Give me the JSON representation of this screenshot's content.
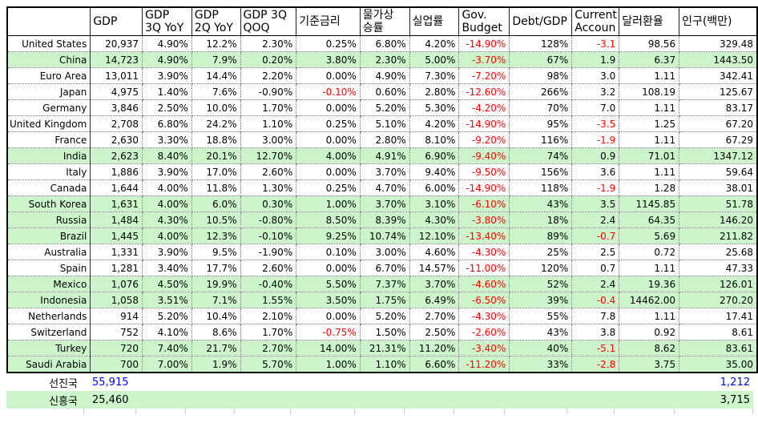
{
  "app": {
    "description": "Spreadsheet of world economic indicators by country"
  },
  "colors": {
    "highlight_green": "#ccf5cc",
    "negative_red": "#ff0000",
    "summary_blue": "#0000ff"
  },
  "table": {
    "columns": [
      {
        "key": "country",
        "label": ""
      },
      {
        "key": "gdp",
        "label": "GDP"
      },
      {
        "key": "gdp_3q_yoy",
        "label": "GDP\n3Q YoY"
      },
      {
        "key": "gdp_2q_yoy",
        "label": "GDP\n2Q YoY"
      },
      {
        "key": "gdp_3q_qoq",
        "label": "GDP 3Q\nQOQ"
      },
      {
        "key": "base_rate",
        "label": "기준금리",
        "neg_red": true
      },
      {
        "key": "inflation",
        "label": "물가상\n승률"
      },
      {
        "key": "unemployment",
        "label": "실업률"
      },
      {
        "key": "gov_budget",
        "label": "Gov.\nBudget",
        "neg_red": true
      },
      {
        "key": "debt_gdp",
        "label": "Debt/GDP"
      },
      {
        "key": "current_account",
        "label": "Current\nAccoun",
        "neg_red": true
      },
      {
        "key": "usd_rate",
        "label": "달러환율"
      },
      {
        "key": "population",
        "label": "인구(백만)"
      }
    ],
    "rows": [
      {
        "label": "United States",
        "green": false,
        "values": [
          "20,937",
          "4.90%",
          "12.2%",
          "2.30%",
          "0.25%",
          "6.80%",
          "4.20%",
          "-14.90%",
          "128%",
          "-3.1",
          "98.56",
          "329.48"
        ]
      },
      {
        "label": "China",
        "green": true,
        "values": [
          "14,723",
          "4.90%",
          "7.9%",
          "0.20%",
          "3.80%",
          "2.30%",
          "5.00%",
          "-3.70%",
          "67%",
          "1.9",
          "6.37",
          "1443.50"
        ]
      },
      {
        "label": "Euro Area",
        "green": false,
        "values": [
          "13,011",
          "3.90%",
          "14.4%",
          "2.20%",
          "0.00%",
          "4.90%",
          "7.30%",
          "-7.20%",
          "98%",
          "3.0",
          "1.11",
          "342.41"
        ]
      },
      {
        "label": "Japan",
        "green": false,
        "values": [
          "4,975",
          "1.40%",
          "7.6%",
          "-0.90%",
          "-0.10%",
          "0.60%",
          "2.80%",
          "-12.60%",
          "266%",
          "3.2",
          "108.19",
          "125.67"
        ]
      },
      {
        "label": "Germany",
        "green": false,
        "values": [
          "3,846",
          "2.50%",
          "10.0%",
          "1.70%",
          "0.00%",
          "5.20%",
          "5.30%",
          "-4.20%",
          "70%",
          "7.0",
          "1.11",
          "83.17"
        ]
      },
      {
        "label": "United Kingdom",
        "green": false,
        "values": [
          "2,708",
          "6.80%",
          "24.2%",
          "1.10%",
          "0.25%",
          "5.10%",
          "4.20%",
          "-14.90%",
          "95%",
          "-3.5",
          "1.25",
          "67.20"
        ]
      },
      {
        "label": "France",
        "green": false,
        "values": [
          "2,630",
          "3.30%",
          "18.8%",
          "3.00%",
          "0.00%",
          "2.80%",
          "8.10%",
          "-9.20%",
          "116%",
          "-1.9",
          "1.11",
          "67.29"
        ]
      },
      {
        "label": "India",
        "green": true,
        "values": [
          "2,623",
          "8.40%",
          "20.1%",
          "12.70%",
          "4.00%",
          "4.91%",
          "6.90%",
          "-9.40%",
          "74%",
          "0.9",
          "71.01",
          "1347.12"
        ]
      },
      {
        "label": "Italy",
        "green": false,
        "values": [
          "1,886",
          "3.90%",
          "17.0%",
          "2.60%",
          "0.00%",
          "3.70%",
          "9.40%",
          "-9.50%",
          "156%",
          "3.6",
          "1.11",
          "59.64"
        ]
      },
      {
        "label": "Canada",
        "green": false,
        "values": [
          "1,644",
          "4.00%",
          "11.8%",
          "1.30%",
          "0.25%",
          "4.70%",
          "6.00%",
          "-14.90%",
          "118%",
          "-1.9",
          "1.28",
          "38.01"
        ]
      },
      {
        "label": "South Korea",
        "green": true,
        "values": [
          "1,631",
          "4.00%",
          "6.0%",
          "0.30%",
          "1.00%",
          "3.70%",
          "3.10%",
          "-6.10%",
          "43%",
          "3.5",
          "1145.85",
          "51.78"
        ]
      },
      {
        "label": "Russia",
        "green": true,
        "values": [
          "1,484",
          "4.30%",
          "10.5%",
          "-0.80%",
          "8.50%",
          "8.39%",
          "4.30%",
          "-3.80%",
          "18%",
          "2.4",
          "64.35",
          "146.20"
        ]
      },
      {
        "label": "Brazil",
        "green": true,
        "values": [
          "1,445",
          "4.00%",
          "12.3%",
          "-0.10%",
          "9.25%",
          "10.74%",
          "12.10%",
          "-13.40%",
          "89%",
          "-0.7",
          "5.69",
          "211.82"
        ]
      },
      {
        "label": "Australia",
        "green": false,
        "values": [
          "1,331",
          "3.90%",
          "9.5%",
          "-1.90%",
          "0.10%",
          "3.00%",
          "4.60%",
          "-4.30%",
          "25%",
          "2.5",
          "0.72",
          "25.68"
        ]
      },
      {
        "label": "Spain",
        "green": false,
        "values": [
          "1,281",
          "3.40%",
          "17.7%",
          "2.60%",
          "0.00%",
          "6.70%",
          "14.57%",
          "-11.00%",
          "120%",
          "0.7",
          "1.11",
          "47.33"
        ]
      },
      {
        "label": "Mexico",
        "green": true,
        "values": [
          "1,076",
          "4.50%",
          "19.9%",
          "-0.40%",
          "5.50%",
          "7.37%",
          "3.70%",
          "-4.60%",
          "52%",
          "2.4",
          "19.36",
          "126.01"
        ]
      },
      {
        "label": "Indonesia",
        "green": true,
        "values": [
          "1,058",
          "3.51%",
          "7.1%",
          "1.55%",
          "3.50%",
          "1.75%",
          "6.49%",
          "-6.50%",
          "39%",
          "-0.4",
          "14462.00",
          "270.20"
        ]
      },
      {
        "label": "Netherlands",
        "green": false,
        "values": [
          "914",
          "5.20%",
          "10.4%",
          "2.10%",
          "0.00%",
          "5.20%",
          "2.70%",
          "-4.30%",
          "55%",
          "7.8",
          "1.11",
          "17.41"
        ]
      },
      {
        "label": "Switzerland",
        "green": false,
        "values": [
          "752",
          "4.10%",
          "8.6%",
          "1.70%",
          "-0.75%",
          "1.50%",
          "2.50%",
          "-2.60%",
          "43%",
          "3.8",
          "0.92",
          "8.61"
        ]
      },
      {
        "label": "Turkey",
        "green": true,
        "values": [
          "720",
          "7.40%",
          "21.7%",
          "2.70%",
          "14.00%",
          "21.31%",
          "11.20%",
          "-3.40%",
          "40%",
          "-5.1",
          "8.62",
          "83.61"
        ]
      },
      {
        "label": "Saudi Arabia",
        "green": true,
        "values": [
          "700",
          "7.00%",
          "1.9%",
          "5.70%",
          "1.00%",
          "1.10%",
          "6.60%",
          "-11.20%",
          "33%",
          "-2.8",
          "3.75",
          "35.00"
        ]
      }
    ]
  },
  "summary": {
    "rows": [
      {
        "label": "선진국",
        "gdp": "55,915",
        "population": "1,212",
        "blue": true,
        "green": false
      },
      {
        "label": "신흥국",
        "gdp": "25,460",
        "population": "3,715",
        "blue": false,
        "green": true
      }
    ]
  }
}
